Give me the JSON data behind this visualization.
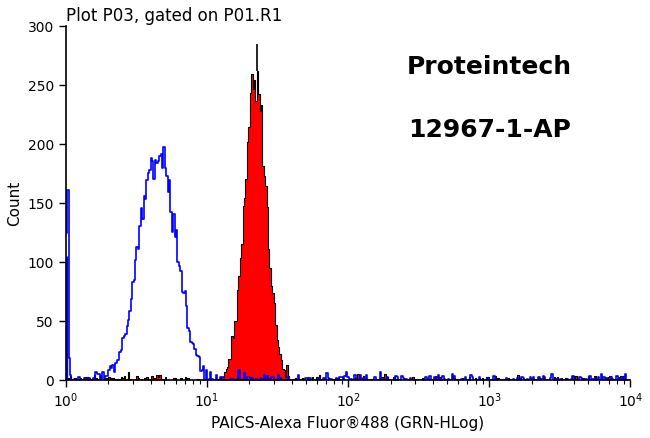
{
  "title": "Plot P03, gated on P01.R1",
  "xlabel": "PAICS-Alexa Fluor®488 (GRN-HLog)",
  "ylabel": "Count",
  "annotation_line1": "Proteintech",
  "annotation_line2": "12967-1-AP",
  "xlim": [
    1,
    10000
  ],
  "ylim": [
    0,
    300
  ],
  "yticks": [
    0,
    50,
    100,
    150,
    200,
    250,
    300
  ],
  "xticks_log": [
    1,
    10,
    100,
    1000,
    10000
  ],
  "blue_color": "#0000ff",
  "red_color": "#ff0000",
  "black_color": "#000000",
  "background_color": "#ffffff",
  "blue_peak_height": 195,
  "red_peak_height": 260,
  "red_spike_height": 285,
  "blue_left_bar_height": 105,
  "annotation_fontsize": 18,
  "title_fontsize": 12,
  "xlabel_fontsize": 11,
  "ylabel_fontsize": 11
}
